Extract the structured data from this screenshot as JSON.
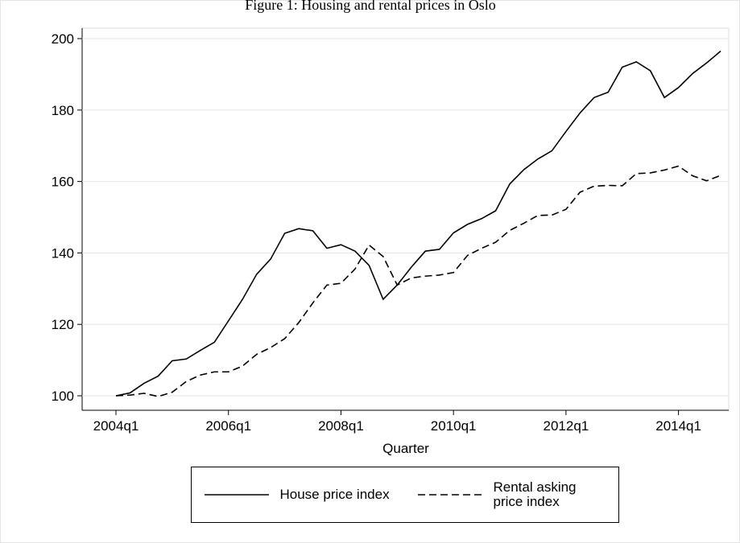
{
  "chart_data": {
    "type": "line",
    "title": "Figure 1: Housing and rental prices in Oslo",
    "x_label": "Quarter",
    "categories": [
      "2004q1",
      null,
      null,
      null,
      null,
      null,
      null,
      null,
      "2006q1",
      null,
      null,
      null,
      null,
      null,
      null,
      null,
      "2008q1",
      null,
      null,
      null,
      null,
      null,
      null,
      null,
      "2010q1",
      null,
      null,
      null,
      null,
      null,
      null,
      null,
      "2012q1",
      null,
      null,
      null,
      null,
      null,
      null,
      null,
      "2014q1",
      null,
      null,
      null
    ],
    "series": [
      {
        "name": "House price index",
        "color": "#000000",
        "dash": "solid",
        "values": [
          100,
          100.8,
          103.5,
          105.5,
          109.8,
          110.3,
          112.7,
          115,
          121,
          127,
          134,
          138.3,
          145.5,
          146.8,
          146.2,
          141.3,
          142.3,
          140.5,
          136.5,
          127,
          131,
          136,
          140.5,
          141,
          145.6,
          148,
          149.6,
          151.8,
          159.3,
          163.3,
          166.3,
          168.6,
          174,
          179.2,
          183.5,
          185,
          192,
          193.5,
          191,
          183.5,
          186.3,
          190.2,
          193.2,
          196.5
        ]
      },
      {
        "name": "Rental asking price index",
        "color": "#000000",
        "dash": "dashed",
        "values": [
          100,
          100.2,
          100.7,
          99.8,
          101,
          104,
          105.8,
          106.7,
          106.7,
          108.3,
          111.6,
          113.5,
          116,
          120.5,
          126,
          131,
          131.5,
          135.5,
          142.2,
          139,
          131,
          133,
          133.5,
          133.8,
          134.5,
          139.3,
          141.3,
          143,
          146.3,
          148.3,
          150.5,
          150.6,
          152.2,
          157,
          158.7,
          158.9,
          158.8,
          162.2,
          162.4,
          163.2,
          164.3,
          161.6,
          160.2,
          161.7
        ]
      }
    ],
    "ylim": [
      98,
      203
    ],
    "yticks": [
      100,
      120,
      140,
      160,
      180,
      200
    ],
    "grid": true,
    "legend": "bottom"
  }
}
